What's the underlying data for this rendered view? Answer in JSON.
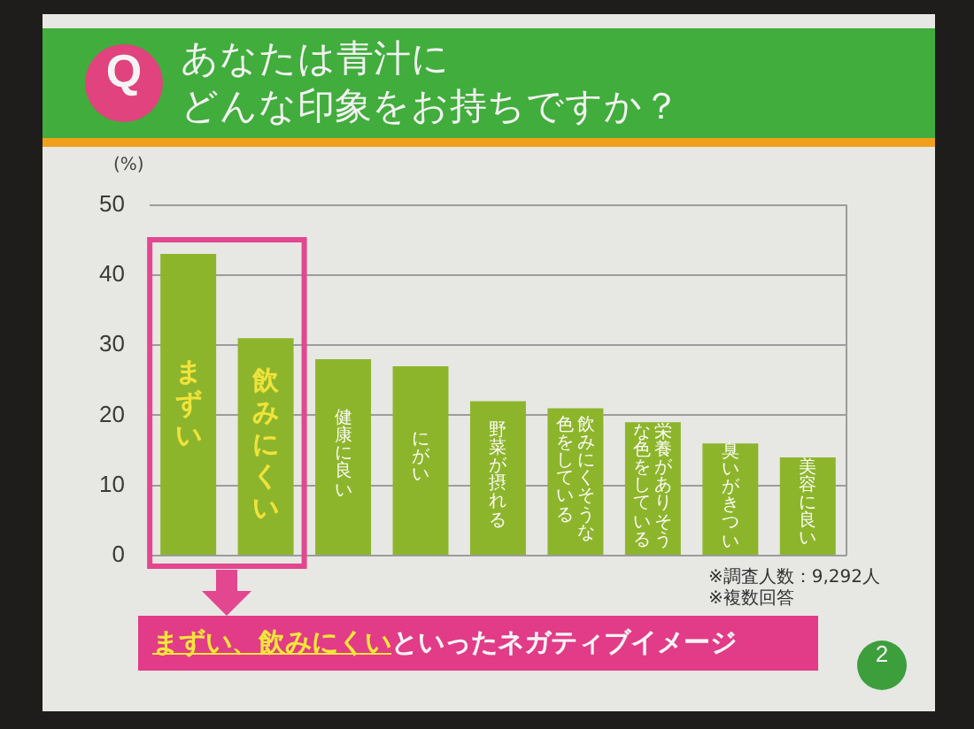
{
  "chart_data": {
    "type": "bar",
    "title": "あなたは青汁にどんな印象をお持ちですか？",
    "ylabel": "(%)",
    "categories": [
      "まずい",
      "飲みにくい",
      "健康に良い",
      "にがい",
      "野菜が摂れる",
      "飲みにくそうな色をしている",
      "栄養がありそうな色をしている",
      "臭いがきつい",
      "美容に良い"
    ],
    "values": [
      43,
      31,
      28,
      27,
      22,
      21,
      19,
      16,
      14
    ],
    "color": "#8db52c",
    "ylim": [
      0,
      50
    ],
    "yticks": [
      0,
      10,
      20,
      30,
      40,
      50
    ],
    "grid": "y",
    "annotations": [
      "Q",
      "まずい、飲みにくい",
      "といったネガティブイメージ",
      "※調査人数：9,292人",
      "※複数回答",
      "2"
    ]
  }
}
